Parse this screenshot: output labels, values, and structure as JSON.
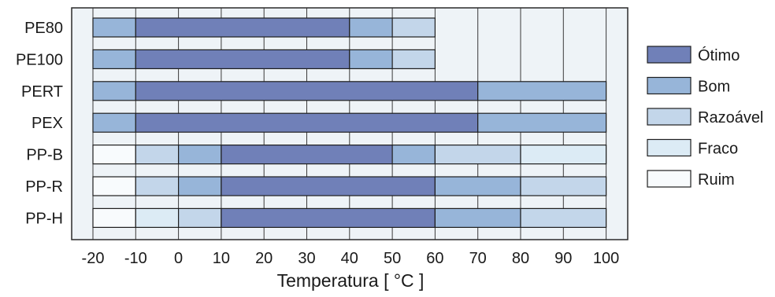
{
  "chart_data": {
    "type": "bar",
    "orientation": "horizontal",
    "stacked": true,
    "title": "",
    "xlabel": "Temperatura [ °C ]",
    "ylabel": "",
    "xlim": [
      -25,
      105
    ],
    "x_ticks": [
      -20,
      -10,
      0,
      10,
      20,
      30,
      40,
      50,
      60,
      70,
      80,
      90,
      100
    ],
    "grid": true,
    "legend_position": "right",
    "categories": [
      "PE80",
      "PE100",
      "PERT",
      "PEX",
      "PP-B",
      "PP-R",
      "PP-H"
    ],
    "legend": [
      {
        "key": "otimo",
        "label": "Ótimo",
        "color": "#7080b8"
      },
      {
        "key": "bom",
        "label": "Bom",
        "color": "#97b5d9"
      },
      {
        "key": "razoavel",
        "label": "Razoável",
        "color": "#c3d6ea"
      },
      {
        "key": "fraco",
        "label": "Fraco",
        "color": "#dcebf5"
      },
      {
        "key": "ruim",
        "label": "Ruim",
        "color": "#f8fbfd"
      }
    ],
    "segments": [
      [
        [
          -20,
          -10,
          "bom"
        ],
        [
          -10,
          40,
          "otimo"
        ],
        [
          40,
          50,
          "bom"
        ],
        [
          50,
          60,
          "razoavel"
        ]
      ],
      [
        [
          -20,
          -10,
          "bom"
        ],
        [
          -10,
          40,
          "otimo"
        ],
        [
          40,
          50,
          "bom"
        ],
        [
          50,
          60,
          "razoavel"
        ]
      ],
      [
        [
          -20,
          -10,
          "bom"
        ],
        [
          -10,
          70,
          "otimo"
        ],
        [
          70,
          100,
          "bom"
        ]
      ],
      [
        [
          -20,
          -10,
          "bom"
        ],
        [
          -10,
          70,
          "otimo"
        ],
        [
          70,
          100,
          "bom"
        ]
      ],
      [
        [
          -20,
          -10,
          "ruim"
        ],
        [
          -10,
          0,
          "razoavel"
        ],
        [
          0,
          10,
          "bom"
        ],
        [
          10,
          50,
          "otimo"
        ],
        [
          50,
          60,
          "bom"
        ],
        [
          60,
          80,
          "razoavel"
        ],
        [
          80,
          100,
          "fraco"
        ]
      ],
      [
        [
          -20,
          -10,
          "ruim"
        ],
        [
          -10,
          0,
          "razoavel"
        ],
        [
          0,
          10,
          "bom"
        ],
        [
          10,
          60,
          "otimo"
        ],
        [
          60,
          80,
          "bom"
        ],
        [
          80,
          100,
          "razoavel"
        ]
      ],
      [
        [
          -20,
          -10,
          "ruim"
        ],
        [
          -10,
          0,
          "fraco"
        ],
        [
          0,
          10,
          "razoavel"
        ],
        [
          10,
          60,
          "otimo"
        ],
        [
          60,
          80,
          "bom"
        ],
        [
          80,
          100,
          "razoavel"
        ]
      ]
    ]
  },
  "colors": {
    "plot_background": "#eef3f7",
    "grid": "#3a3a3a",
    "frame": "#2a2a2a",
    "bar_stroke": "#1e1e1e"
  }
}
